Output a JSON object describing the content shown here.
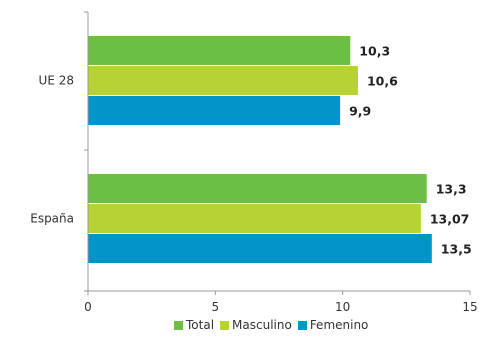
{
  "chart_data": {
    "type": "bar",
    "orientation": "horizontal",
    "categories": [
      "UE 28",
      "España"
    ],
    "series": [
      {
        "name": "Total",
        "color": "#6dbe45",
        "values": [
          10.3,
          13.3
        ],
        "labels": [
          "10,3",
          "13,3"
        ]
      },
      {
        "name": "Masculino",
        "color": "#b5d334",
        "values": [
          10.6,
          13.07
        ],
        "labels": [
          "10,6",
          "13,07"
        ]
      },
      {
        "name": "Femenino",
        "color": "#0095c8",
        "values": [
          9.9,
          13.5
        ],
        "labels": [
          "9,9",
          "13,5"
        ]
      }
    ],
    "xlim": [
      0,
      15
    ],
    "xticks": [
      "0",
      "5",
      "10",
      "15"
    ],
    "grid": false,
    "legend_position": "bottom"
  }
}
